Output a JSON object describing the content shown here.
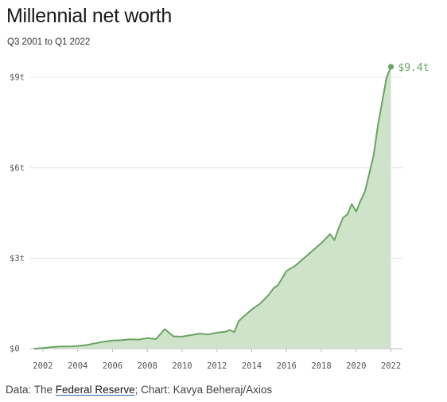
{
  "header": {
    "title": "Millennial net worth",
    "subtitle": "Q3 2001 to Q1 2022"
  },
  "footer": {
    "prefix": "Data: The ",
    "source_link": "Federal Reserve",
    "suffix": "; Chart: Kavya Beheraj/Axios"
  },
  "colors": {
    "line": "#6aa364",
    "area": "#cfe3ca",
    "grid": "#e6e6e6",
    "axis": "#bbbbbb"
  },
  "chart_data": {
    "type": "area",
    "title": "Millennial net worth",
    "subtitle": "Q3 2001 to Q1 2022",
    "xlabel": "",
    "ylabel": "",
    "xlim": [
      2001.5,
      2022.25
    ],
    "ylim": [
      0,
      9.4
    ],
    "grid": true,
    "y_ticks": [
      {
        "value": 0,
        "label": "$0"
      },
      {
        "value": 3,
        "label": "$3t"
      },
      {
        "value": 6,
        "label": "$6t"
      },
      {
        "value": 9,
        "label": "$9t"
      }
    ],
    "x_ticks": [
      "2002",
      "2004",
      "2006",
      "2008",
      "2010",
      "2012",
      "2014",
      "2016",
      "2018",
      "2020",
      "2022"
    ],
    "end_label": "$9.4t",
    "series": [
      {
        "x": [
          2001.5,
          2002.0,
          2002.5,
          2003.0,
          2003.5,
          2004.0,
          2004.5,
          2005.0,
          2005.5,
          2006.0,
          2006.5,
          2007.0,
          2007.5,
          2008.0,
          2008.5,
          2009.0,
          2009.5,
          2010.0,
          2010.5,
          2011.0,
          2011.5,
          2012.0,
          2012.5,
          2012.75,
          2013.0,
          2013.25,
          2013.5,
          2014.0,
          2014.5,
          2015.0,
          2015.25,
          2015.5,
          2016.0,
          2016.5,
          2017.0,
          2017.5,
          2018.0,
          2018.5,
          2018.75,
          2019.0,
          2019.25,
          2019.5,
          2019.75,
          2020.0,
          2020.25,
          2020.5,
          2020.75,
          2021.0,
          2021.25,
          2021.5,
          2021.75,
          2022.0
        ],
        "values": [
          0.0,
          0.02,
          0.05,
          0.07,
          0.07,
          0.09,
          0.12,
          0.18,
          0.23,
          0.27,
          0.28,
          0.31,
          0.3,
          0.35,
          0.32,
          0.65,
          0.41,
          0.4,
          0.45,
          0.5,
          0.47,
          0.53,
          0.56,
          0.62,
          0.55,
          0.92,
          1.05,
          1.3,
          1.5,
          1.8,
          2.0,
          2.1,
          2.58,
          2.75,
          3.0,
          3.25,
          3.5,
          3.8,
          3.6,
          4.0,
          4.35,
          4.45,
          4.8,
          4.55,
          4.9,
          5.2,
          5.8,
          6.4,
          7.4,
          8.2,
          9.0,
          9.35
        ]
      }
    ]
  }
}
